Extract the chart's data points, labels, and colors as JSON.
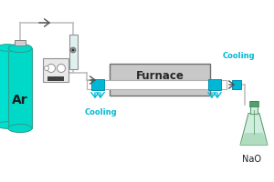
{
  "bg_color": "#ffffff",
  "cyan_color": "#00b8d4",
  "gray_color": "#b0b0b0",
  "dark_gray": "#707070",
  "light_gray": "#c8c8c8",
  "line_color": "#a0a0a0",
  "tube_color": "#ffffff",
  "furnace_label": "Furnace",
  "cooling_label": "Cooling",
  "cooling2_label": "Cooling",
  "ar_label": "Ar",
  "naoh_label": "NaO",
  "cyl1_color": "#00d8c8",
  "cyl2_color": "#00c0b0",
  "cyl_edge": "#30a090",
  "pipe_color": "#c0c0c0",
  "arrow_color": "#505050",
  "flask_body": "#d0ede0",
  "flask_liquid": "#b0dcc0",
  "flask_stopper": "#50a068",
  "flask_edge": "#60a070",
  "regbox_color": "#e8e8e8",
  "regbox_edge": "#909090",
  "fm_color": "#e0f0f0",
  "fm_edge": "#909090"
}
